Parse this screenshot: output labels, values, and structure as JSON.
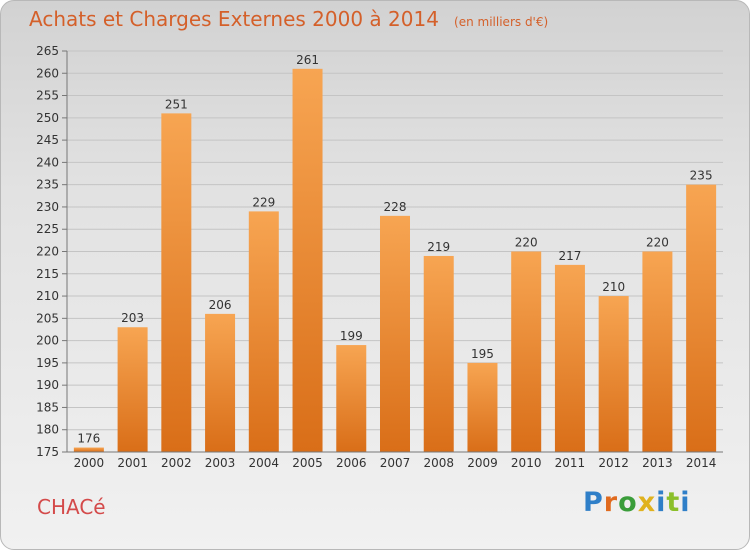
{
  "header": {
    "title": "Achats et Charges Externes 2000 à 2014",
    "subtitle": "(en milliers d'€)"
  },
  "footer": {
    "commune": "CHACé",
    "logo_text": "Proxiti"
  },
  "colors": {
    "bar_top": "#f7a552",
    "bar_bottom": "#d96e18",
    "title": "#d4602a",
    "commune": "#d44a4a"
  },
  "chart_data": {
    "type": "bar",
    "title": "Achats et Charges Externes 2000 à 2014",
    "subtitle": "(en milliers d'€)",
    "xlabel": "",
    "ylabel": "",
    "categories": [
      "2000",
      "2001",
      "2002",
      "2003",
      "2004",
      "2005",
      "2006",
      "2007",
      "2008",
      "2009",
      "2010",
      "2011",
      "2012",
      "2013",
      "2014"
    ],
    "values": [
      176,
      203,
      251,
      206,
      229,
      261,
      199,
      228,
      219,
      195,
      220,
      217,
      210,
      220,
      235
    ],
    "ylim": [
      175,
      265
    ],
    "yticks": [
      175,
      180,
      185,
      190,
      195,
      200,
      205,
      210,
      215,
      220,
      225,
      230,
      235,
      240,
      245,
      250,
      255,
      260,
      265
    ],
    "grid": true,
    "legend": "none"
  }
}
